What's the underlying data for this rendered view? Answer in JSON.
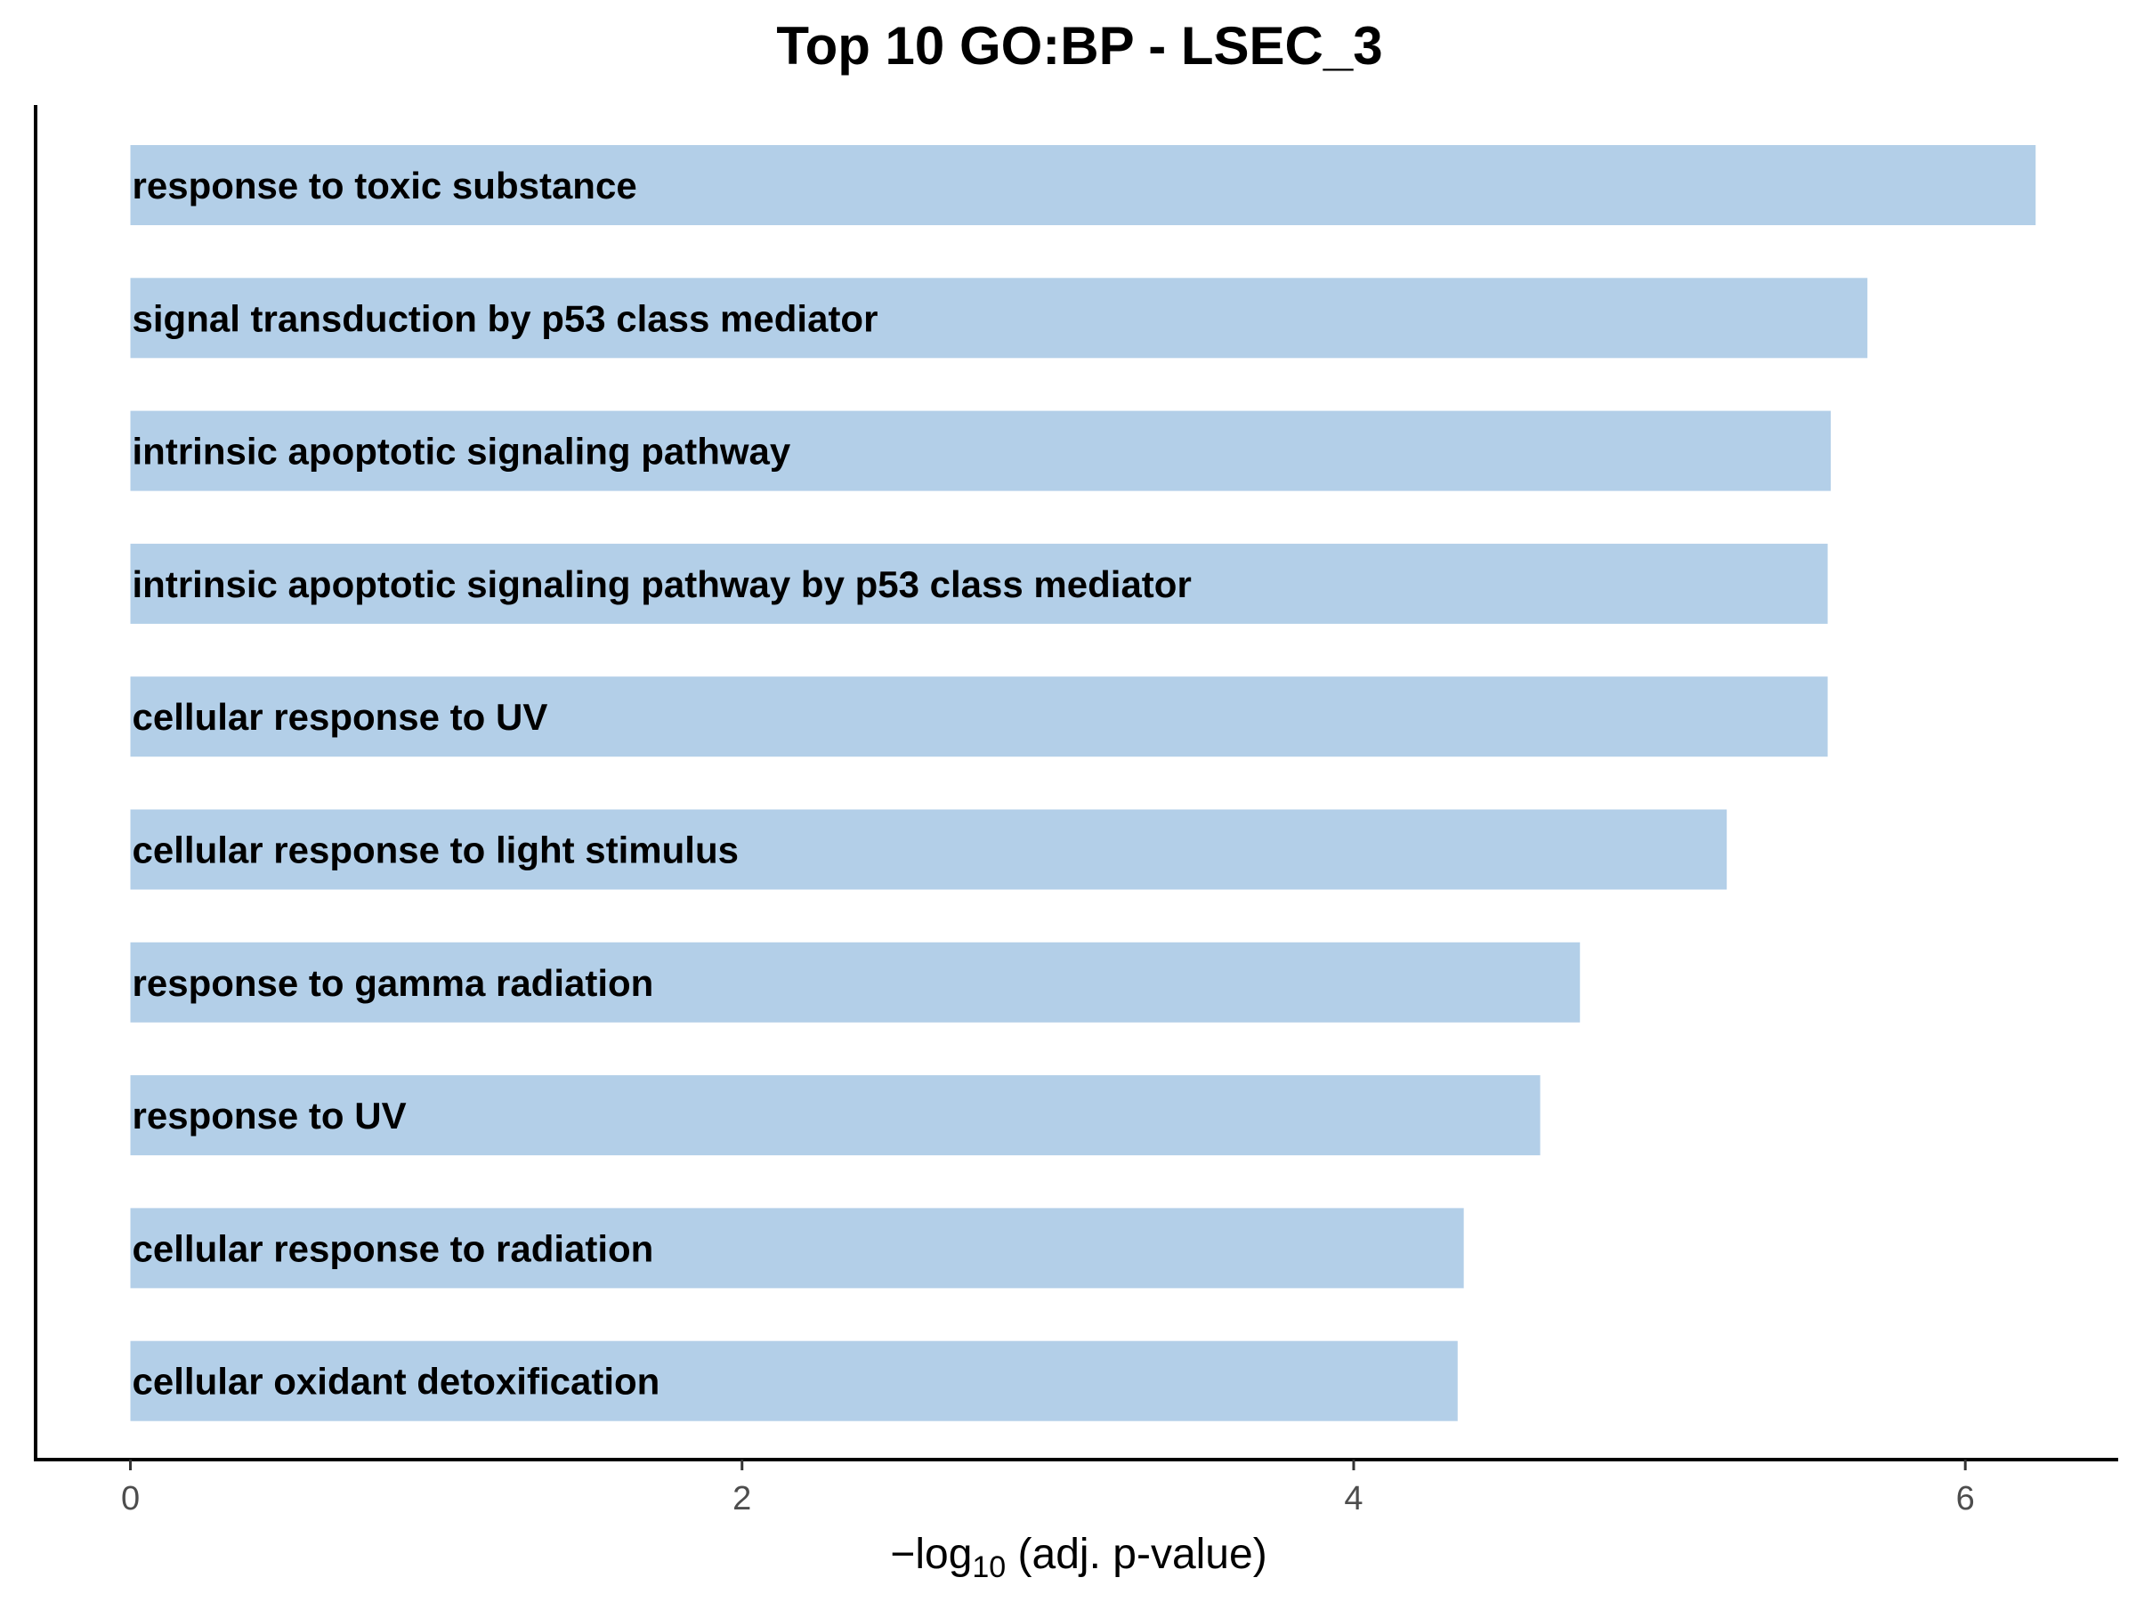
{
  "chart_data": {
    "type": "bar",
    "orientation": "horizontal",
    "title": "Top 10 GO:BP - LSEC_3",
    "xlabel": "-log10 (adj. p-value)",
    "xlabel_parts": {
      "prefix": "−log",
      "subscript": "10",
      "suffix": " (adj. p-value)"
    },
    "ylabel": "",
    "categories": [
      "response to toxic substance",
      "signal transduction by p53 class mediator",
      "intrinsic apoptotic signaling pathway",
      "intrinsic apoptotic signaling pathway by p53 class mediator",
      "cellular response to UV",
      "cellular response to light stimulus",
      "response to gamma radiation",
      "response to UV",
      "cellular response to radiation",
      "cellular oxidant detoxification"
    ],
    "values": [
      6.23,
      5.68,
      5.56,
      5.55,
      5.55,
      5.22,
      4.74,
      4.61,
      4.36,
      4.34
    ],
    "xlim": [
      -0.31,
      6.5
    ],
    "xticks": [
      0,
      2,
      4,
      6
    ],
    "bar_color": "#b3cfe8",
    "grid": false,
    "legend": "none"
  }
}
